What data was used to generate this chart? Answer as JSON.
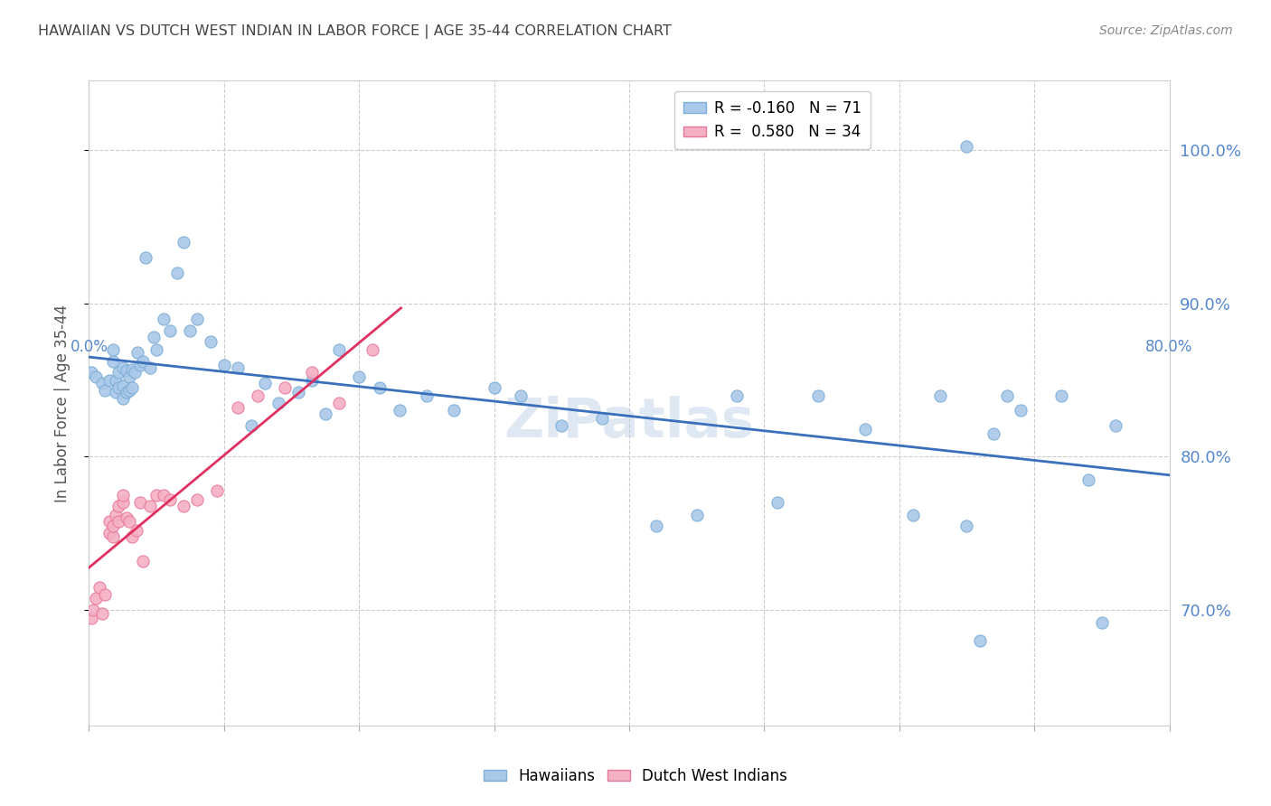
{
  "title": "HAWAIIAN VS DUTCH WEST INDIAN IN LABOR FORCE | AGE 35-44 CORRELATION CHART",
  "source": "Source: ZipAtlas.com",
  "ylabel": "In Labor Force | Age 35-44",
  "blue_color": "#aac8e8",
  "blue_edge": "#7aaed6",
  "pink_color": "#f4b0c4",
  "pink_edge": "#e87898",
  "blue_line_color": "#3a6fbb",
  "pink_line_color": "#e03060",
  "grid_color": "#cccccc",
  "title_color": "#444444",
  "axis_label_color": "#5588cc",
  "watermark": "ZiPatlas",
  "xlim": [
    0.0,
    0.8
  ],
  "ylim": [
    0.625,
    1.045
  ],
  "hawaiians_x": [
    0.002,
    0.005,
    0.01,
    0.012,
    0.015,
    0.018,
    0.018,
    0.02,
    0.02,
    0.022,
    0.022,
    0.025,
    0.025,
    0.025,
    0.028,
    0.028,
    0.03,
    0.03,
    0.032,
    0.032,
    0.034,
    0.036,
    0.038,
    0.04,
    0.042,
    0.045,
    0.048,
    0.05,
    0.055,
    0.06,
    0.065,
    0.07,
    0.075,
    0.08,
    0.09,
    0.1,
    0.11,
    0.12,
    0.13,
    0.14,
    0.155,
    0.165,
    0.175,
    0.185,
    0.2,
    0.215,
    0.23,
    0.25,
    0.27,
    0.3,
    0.32,
    0.35,
    0.38,
    0.42,
    0.45,
    0.48,
    0.51,
    0.54,
    0.575,
    0.61,
    0.63,
    0.65,
    0.67,
    0.69,
    0.72,
    0.74,
    0.76,
    0.65,
    0.68,
    0.75,
    0.66
  ],
  "hawaiians_y": [
    0.855,
    0.852,
    0.848,
    0.843,
    0.85,
    0.862,
    0.87,
    0.842,
    0.85,
    0.845,
    0.855,
    0.838,
    0.846,
    0.858,
    0.842,
    0.856,
    0.843,
    0.852,
    0.845,
    0.857,
    0.855,
    0.868,
    0.86,
    0.862,
    0.93,
    0.858,
    0.878,
    0.87,
    0.89,
    0.882,
    0.92,
    0.94,
    0.882,
    0.89,
    0.875,
    0.86,
    0.858,
    0.82,
    0.848,
    0.835,
    0.842,
    0.85,
    0.828,
    0.87,
    0.852,
    0.845,
    0.83,
    0.84,
    0.83,
    0.845,
    0.84,
    0.82,
    0.825,
    0.755,
    0.762,
    0.84,
    0.77,
    0.84,
    0.818,
    0.762,
    0.84,
    0.755,
    0.815,
    0.83,
    0.84,
    0.785,
    0.82,
    1.002,
    0.84,
    0.692,
    0.68
  ],
  "dutch_x": [
    0.002,
    0.003,
    0.005,
    0.008,
    0.01,
    0.012,
    0.015,
    0.015,
    0.018,
    0.018,
    0.02,
    0.022,
    0.022,
    0.025,
    0.025,
    0.028,
    0.03,
    0.032,
    0.035,
    0.038,
    0.04,
    0.045,
    0.05,
    0.055,
    0.06,
    0.07,
    0.08,
    0.095,
    0.11,
    0.125,
    0.145,
    0.165,
    0.185,
    0.21
  ],
  "dutch_y": [
    0.695,
    0.7,
    0.708,
    0.715,
    0.698,
    0.71,
    0.75,
    0.758,
    0.748,
    0.755,
    0.762,
    0.758,
    0.768,
    0.77,
    0.775,
    0.76,
    0.758,
    0.748,
    0.752,
    0.77,
    0.732,
    0.768,
    0.775,
    0.775,
    0.772,
    0.768,
    0.772,
    0.778,
    0.832,
    0.84,
    0.845,
    0.855,
    0.835,
    0.87
  ]
}
